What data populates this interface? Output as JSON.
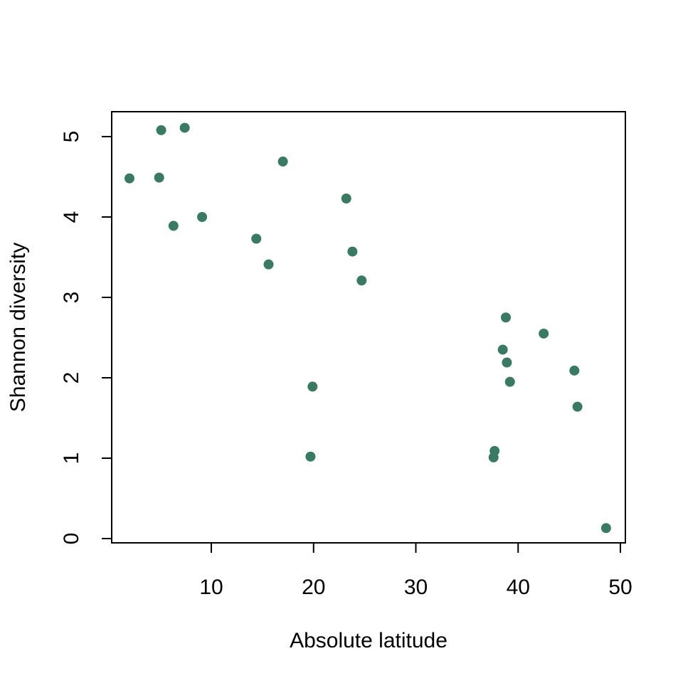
{
  "chart_data": {
    "type": "scatter",
    "xlabel": "Absolute latitude",
    "ylabel": "Shannon diversity",
    "xlim": [
      0,
      50
    ],
    "ylim": [
      0,
      5.3
    ],
    "x_ticks": [
      10,
      20,
      30,
      40,
      50
    ],
    "y_ticks": [
      0,
      1,
      2,
      3,
      4,
      5
    ],
    "grid": false,
    "legend": "none",
    "point_color": "#3a7a63",
    "points": [
      {
        "x": 2.0,
        "y": 4.48
      },
      {
        "x": 4.9,
        "y": 4.49
      },
      {
        "x": 5.1,
        "y": 5.08
      },
      {
        "x": 6.3,
        "y": 3.89
      },
      {
        "x": 7.4,
        "y": 5.11
      },
      {
        "x": 9.1,
        "y": 4.0
      },
      {
        "x": 14.4,
        "y": 3.73
      },
      {
        "x": 15.6,
        "y": 3.41
      },
      {
        "x": 17.0,
        "y": 4.69
      },
      {
        "x": 19.7,
        "y": 1.02
      },
      {
        "x": 19.9,
        "y": 1.89
      },
      {
        "x": 23.2,
        "y": 4.23
      },
      {
        "x": 23.8,
        "y": 3.57
      },
      {
        "x": 24.7,
        "y": 3.21
      },
      {
        "x": 37.6,
        "y": 1.01
      },
      {
        "x": 37.7,
        "y": 1.09
      },
      {
        "x": 38.5,
        "y": 2.35
      },
      {
        "x": 38.8,
        "y": 2.75
      },
      {
        "x": 38.9,
        "y": 2.19
      },
      {
        "x": 39.2,
        "y": 1.95
      },
      {
        "x": 42.5,
        "y": 2.55
      },
      {
        "x": 45.5,
        "y": 2.09
      },
      {
        "x": 45.8,
        "y": 1.64
      },
      {
        "x": 48.6,
        "y": 0.13
      }
    ]
  }
}
